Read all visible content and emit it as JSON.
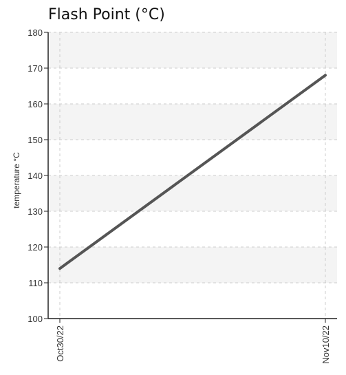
{
  "chart_data": {
    "type": "line",
    "title": "Flash Point (°C)",
    "xlabel": "",
    "ylabel": "temperature °C",
    "x": [
      "Oct30/22",
      "Nov10/22"
    ],
    "series": [
      {
        "values": [
          114,
          168
        ]
      }
    ],
    "ylim": [
      100,
      180
    ],
    "yticks": [
      "100",
      "110",
      "120",
      "130",
      "140",
      "150",
      "160",
      "170",
      "180"
    ],
    "grid": true,
    "colors": {
      "line": "#555555",
      "band": "#f4f4f4",
      "grid": "#cccccc",
      "axis": "#222222"
    }
  }
}
